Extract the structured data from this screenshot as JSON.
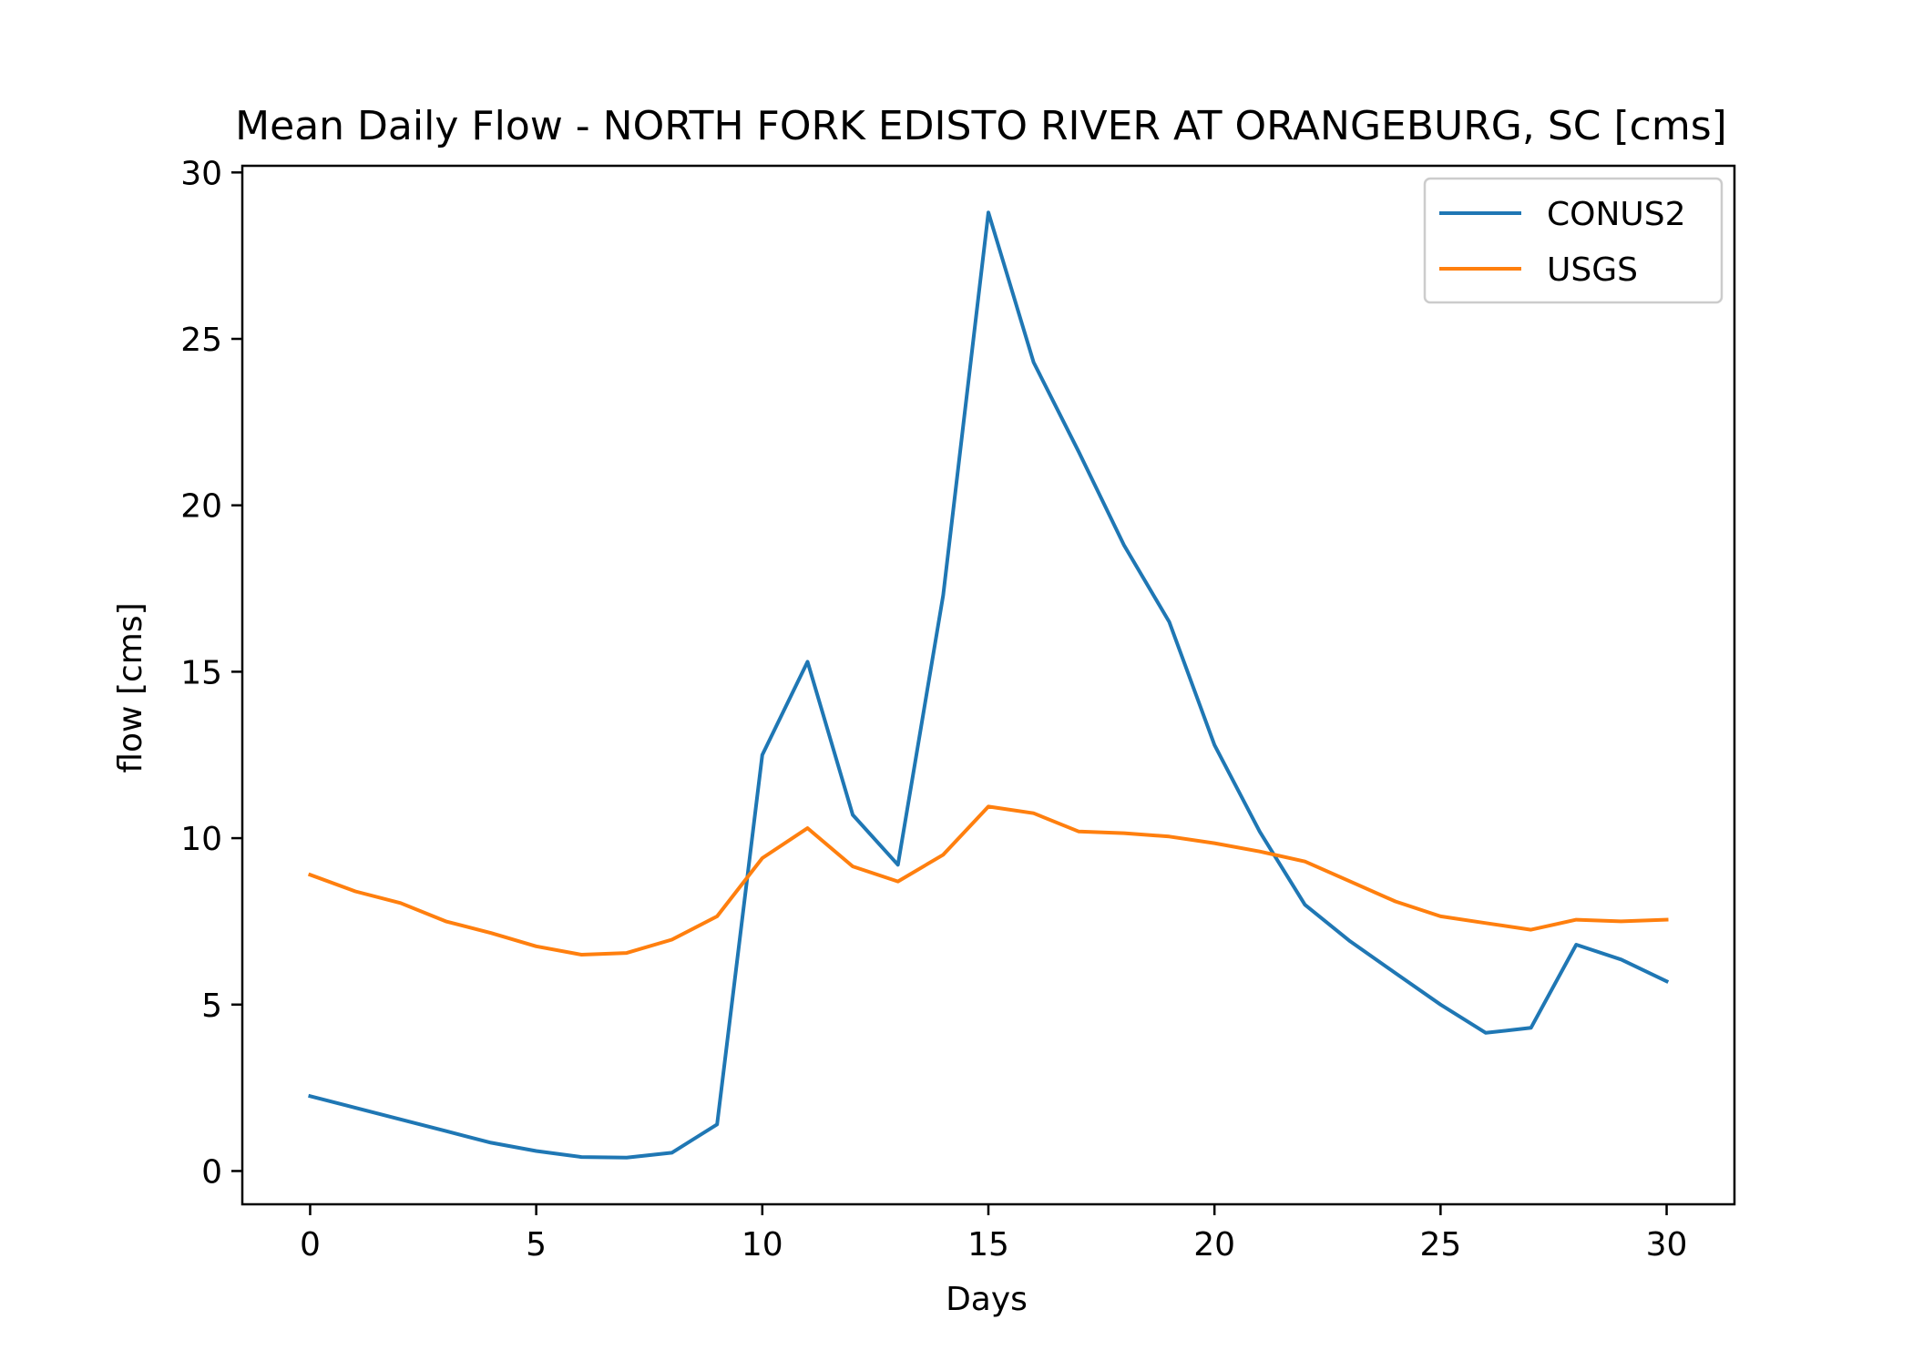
{
  "chart_data": {
    "type": "line",
    "title": "Mean Daily Flow - NORTH FORK EDISTO RIVER AT ORANGEBURG, SC [cms]",
    "xlabel": "Days",
    "ylabel": "flow [cms]",
    "xlim": [
      -1.5,
      31.5
    ],
    "ylim": [
      -1,
      30.2
    ],
    "xticks": [
      0,
      5,
      10,
      15,
      20,
      25,
      30
    ],
    "yticks": [
      0,
      5,
      10,
      15,
      20,
      25,
      30
    ],
    "x": [
      0,
      1,
      2,
      3,
      4,
      5,
      6,
      7,
      8,
      9,
      10,
      11,
      12,
      13,
      14,
      15,
      16,
      17,
      18,
      19,
      20,
      21,
      22,
      23,
      24,
      25,
      26,
      27,
      28,
      29,
      30
    ],
    "grid": false,
    "legend_position": "upper right",
    "series": [
      {
        "name": "CONUS2",
        "color": "#1f77b4",
        "values": [
          2.25,
          1.9,
          1.55,
          1.2,
          0.85,
          0.6,
          0.42,
          0.4,
          0.55,
          1.4,
          12.5,
          15.3,
          10.7,
          9.2,
          17.3,
          28.8,
          24.3,
          21.6,
          18.8,
          16.5,
          12.8,
          10.2,
          8.0,
          6.9,
          5.95,
          5.0,
          4.15,
          4.3,
          6.8,
          6.35,
          5.7
        ]
      },
      {
        "name": "USGS",
        "color": "#ff7f0e",
        "values": [
          8.9,
          8.4,
          8.05,
          7.5,
          7.15,
          6.75,
          6.5,
          6.55,
          6.95,
          7.65,
          9.4,
          10.3,
          9.15,
          8.7,
          9.5,
          10.95,
          10.75,
          10.2,
          10.15,
          10.05,
          9.85,
          9.6,
          9.3,
          8.7,
          8.1,
          7.65,
          7.45,
          7.25,
          7.55,
          7.5,
          7.55
        ]
      }
    ]
  }
}
